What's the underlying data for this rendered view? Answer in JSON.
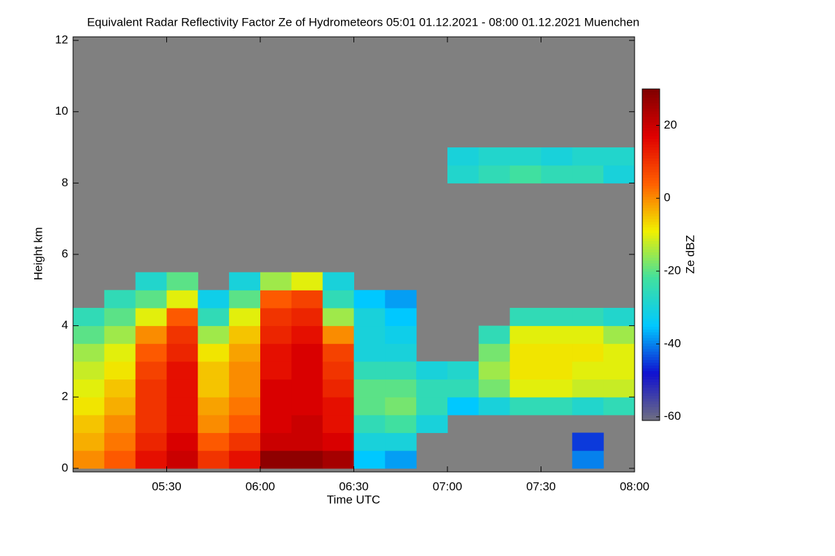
{
  "chart_data": {
    "type": "heatmap",
    "title": "Equivalent Radar Reflectivity Factor Ze of Hydrometeors   05:01 01.12.2021 - 08:00 01.12.2021 Muenchen",
    "xlabel": "Time UTC",
    "ylabel": "Height km",
    "background": "#808080",
    "xlim": [
      300,
      480
    ],
    "xticks": [
      {
        "value": 330,
        "label": "05:30"
      },
      {
        "value": 360,
        "label": "06:00"
      },
      {
        "value": 390,
        "label": "06:30"
      },
      {
        "value": 420,
        "label": "07:00"
      },
      {
        "value": 450,
        "label": "07:30"
      },
      {
        "value": 480,
        "label": "08:00"
      }
    ],
    "ylim": [
      -0.1,
      12.1
    ],
    "yticks": [
      0,
      2,
      4,
      6,
      8,
      10,
      12
    ],
    "xbins": [
      300,
      310,
      320,
      330,
      340,
      350,
      360,
      370,
      380,
      390,
      400,
      410,
      420,
      430,
      440,
      450,
      460,
      470,
      480
    ],
    "ybins": [
      0,
      0.5,
      1,
      1.5,
      2,
      2.5,
      3,
      3.5,
      4,
      4.5,
      5,
      5.5,
      6,
      6.5,
      7,
      7.5,
      8,
      8.5,
      9,
      9.5,
      10,
      10.5,
      11,
      11.5,
      12
    ],
    "z": [
      [
        0,
        -3,
        -5,
        -8,
        -10,
        -12,
        -15,
        -20,
        -25,
        null,
        null,
        null,
        null,
        null,
        null,
        null,
        null,
        null,
        null,
        null,
        null,
        null,
        null,
        null
      ],
      [
        5,
        2,
        0,
        -3,
        -5,
        -8,
        -10,
        -15,
        -20,
        -25,
        null,
        null,
        null,
        null,
        null,
        null,
        null,
        null,
        null,
        null,
        null,
        null,
        null,
        null
      ],
      [
        15,
        12,
        10,
        10,
        10,
        8,
        5,
        0,
        -10,
        -20,
        -28,
        null,
        null,
        null,
        null,
        null,
        null,
        null,
        null,
        null,
        null,
        null,
        null,
        null
      ],
      [
        20,
        18,
        15,
        15,
        15,
        15,
        12,
        10,
        5,
        -10,
        -20,
        null,
        null,
        null,
        null,
        null,
        null,
        null,
        null,
        null,
        null,
        null,
        null,
        null
      ],
      [
        10,
        5,
        0,
        -2,
        -5,
        -5,
        -8,
        -15,
        -25,
        -32,
        null,
        null,
        null,
        null,
        null,
        null,
        null,
        null,
        null,
        null,
        null,
        null,
        null,
        null
      ],
      [
        15,
        10,
        5,
        2,
        0,
        0,
        -2,
        -5,
        -10,
        -20,
        -30,
        null,
        null,
        null,
        null,
        null,
        null,
        null,
        null,
        null,
        null,
        null,
        null,
        null
      ],
      [
        28,
        20,
        18,
        18,
        18,
        15,
        15,
        12,
        10,
        5,
        -15,
        null,
        null,
        null,
        null,
        null,
        null,
        null,
        null,
        null,
        null,
        null,
        null,
        null
      ],
      [
        28,
        20,
        20,
        18,
        18,
        18,
        18,
        15,
        12,
        8,
        -10,
        null,
        null,
        null,
        null,
        null,
        null,
        null,
        null,
        null,
        null,
        null,
        null,
        null
      ],
      [
        25,
        18,
        15,
        15,
        12,
        10,
        8,
        0,
        -15,
        -25,
        -30,
        null,
        null,
        null,
        null,
        null,
        null,
        null,
        null,
        null,
        null,
        null,
        null,
        null
      ],
      [
        -35,
        -30,
        -25,
        -20,
        -20,
        -25,
        -30,
        -30,
        -30,
        -35,
        null,
        null,
        null,
        null,
        null,
        null,
        null,
        null,
        null,
        null,
        null,
        null,
        null,
        null
      ],
      [
        -38,
        -30,
        -22,
        -18,
        -20,
        -25,
        -30,
        -32,
        -35,
        -38,
        null,
        null,
        null,
        null,
        null,
        null,
        null,
        null,
        null,
        null,
        null,
        null,
        null,
        null
      ],
      [
        null,
        null,
        -30,
        -25,
        -25,
        -30,
        null,
        null,
        null,
        null,
        null,
        null,
        null,
        null,
        null,
        null,
        null,
        null,
        null,
        null,
        null,
        null,
        null,
        null
      ],
      [
        null,
        null,
        null,
        -35,
        -25,
        -28,
        null,
        null,
        null,
        null,
        null,
        null,
        null,
        null,
        null,
        null,
        -28,
        -30,
        null,
        null,
        null,
        null,
        null,
        null
      ],
      [
        null,
        null,
        null,
        -30,
        -18,
        -15,
        -18,
        -25,
        null,
        null,
        null,
        null,
        null,
        null,
        null,
        null,
        -25,
        -28,
        null,
        null,
        null,
        null,
        null,
        null
      ],
      [
        null,
        null,
        null,
        -25,
        -10,
        -8,
        -8,
        -10,
        -25,
        null,
        null,
        null,
        null,
        null,
        null,
        null,
        -22,
        -28,
        null,
        null,
        null,
        null,
        null,
        null
      ],
      [
        null,
        null,
        null,
        -25,
        -10,
        -8,
        -8,
        -10,
        -25,
        null,
        null,
        null,
        null,
        null,
        null,
        null,
        -25,
        -30,
        null,
        null,
        null,
        null,
        null,
        null
      ],
      [
        -40,
        -45,
        null,
        -28,
        -12,
        -10,
        -8,
        -10,
        -25,
        null,
        null,
        null,
        null,
        null,
        null,
        null,
        -25,
        -28,
        null,
        null,
        null,
        null,
        null,
        null
      ],
      [
        null,
        null,
        null,
        -25,
        -12,
        -10,
        -10,
        -15,
        -28,
        null,
        null,
        null,
        null,
        null,
        null,
        null,
        -30,
        -28,
        null,
        null,
        null,
        null,
        null,
        null
      ]
    ],
    "colorbar": {
      "label": "Ze dBZ",
      "lim": [
        -61,
        30
      ],
      "ticks": [
        20,
        0,
        -20,
        -40,
        -60
      ],
      "colors": [
        "#707080",
        "#1010d0",
        "#00c8ff",
        "#40e0a0",
        "#f0f000",
        "#ff6000",
        "#e00000",
        "#800000"
      ]
    }
  }
}
